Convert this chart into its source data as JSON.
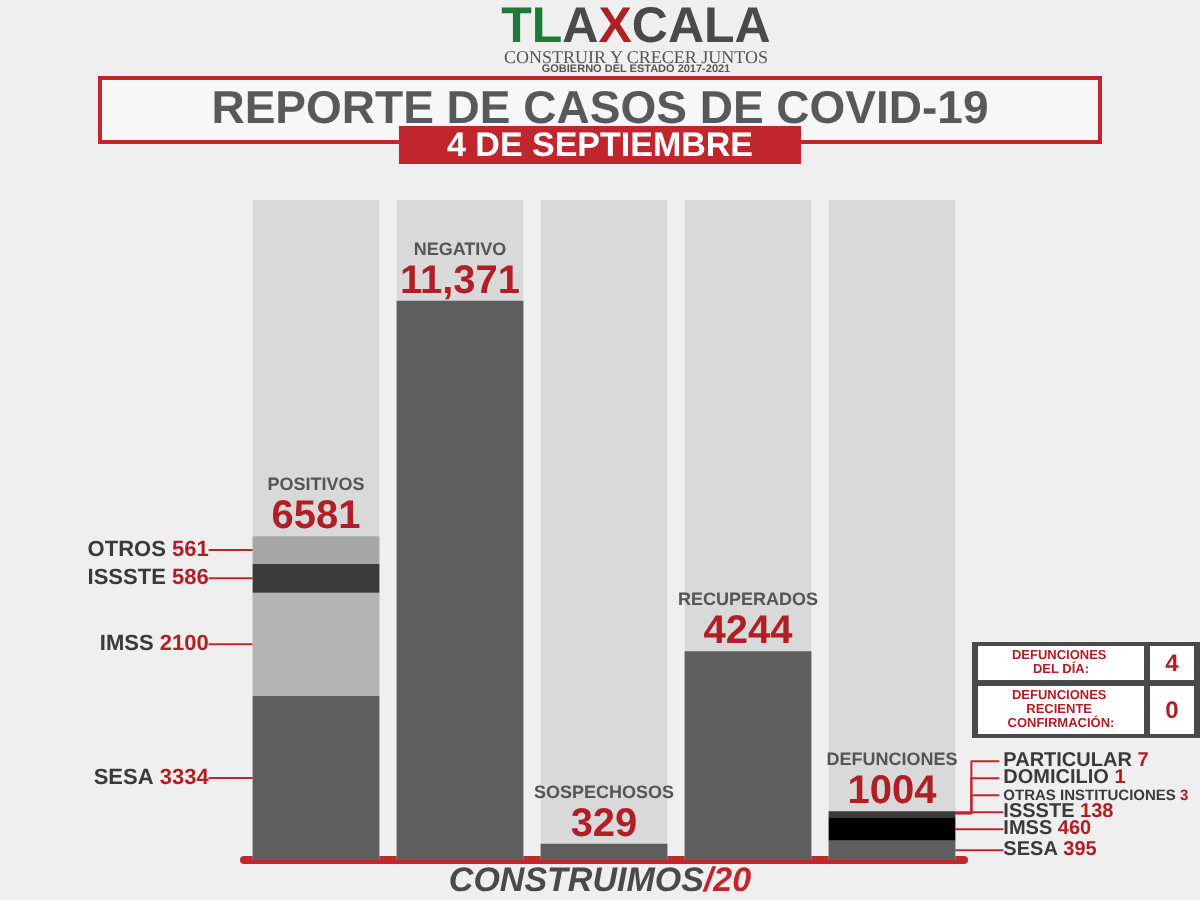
{
  "chart_data": {
    "type": "bar",
    "stacked": true,
    "title": "REPORTE DE CASOS DE COVID-19",
    "subtitle": "4 DE SEPTIEMBRE",
    "categories": [
      "POSITIVOS",
      "NEGATIVO",
      "SOSPECHOSOS",
      "RECUPERADOS",
      "DEFUNCIONES"
    ],
    "series": [
      {
        "color": "#5e5e5e",
        "values": [
          null,
          11371,
          329,
          4244,
          null
        ],
        "value_labels": [
          null,
          "11,371",
          "329",
          "4244",
          null
        ]
      },
      {
        "color": "#5e5e5e",
        "values": [
          3334,
          null,
          null,
          null,
          395
        ],
        "value_labels": [
          "SESA 3334",
          null,
          null,
          null,
          "SESA 395"
        ]
      },
      {
        "color": "#b4b4b4",
        "colors": [
          "#b4b4b4",
          null,
          null,
          null,
          "#000000"
        ],
        "values": [
          2100,
          null,
          null,
          null,
          460
        ],
        "value_labels": [
          "IMSS 2100",
          null,
          null,
          null,
          "IMSS 460"
        ]
      },
      {
        "color": "#3b3b3b",
        "values": [
          586,
          null,
          null,
          null,
          138
        ],
        "value_labels": [
          "ISSSTE 586",
          null,
          null,
          null,
          "ISSSTE 138"
        ]
      },
      {
        "color": "#a7a7a7",
        "values": [
          561,
          null,
          null,
          null,
          null
        ],
        "value_labels": [
          "OTROS 561",
          null,
          null,
          null,
          null
        ]
      }
    ],
    "totals": [
      "6581",
      null,
      null,
      null,
      null
    ],
    "annotations": [
      "TLAXCALA",
      "CONSTRUIR Y CRECER JUNTOS",
      "GOBIERNO DEL ESTADO 2017-2021",
      "DEFUNCIONES DEL DÍA: 4",
      "DEFUNCIONES RECIENTE CONFIRMACIÓN: 0",
      "CONSTRUIMOS/20",
      "PARTICULAR 7",
      "DOMICILIO 1",
      "OTRAS INSTITUCIONES 3",
      {
        "text": "1004",
        "x": "DEFUNCIONES",
        "y": 1004
      }
    ]
  }
}
